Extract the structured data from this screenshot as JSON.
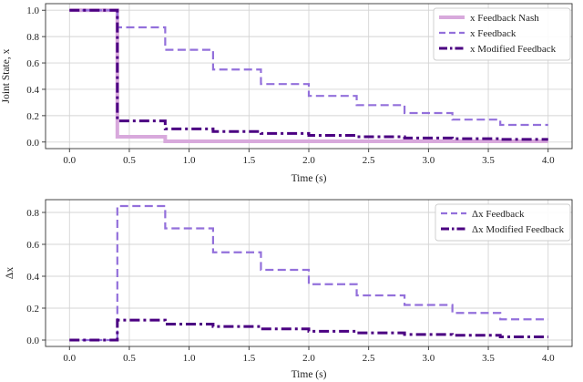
{
  "chart_data": [
    {
      "type": "line",
      "xlabel": "Time (s)",
      "ylabel": "Joint State, x",
      "xlim": [
        -0.2,
        4.2
      ],
      "ylim": [
        -0.05,
        1.05
      ],
      "xticks": [
        "0.0",
        "0.5",
        "1.0",
        "1.5",
        "2.0",
        "2.5",
        "3.0",
        "3.5",
        "4.0"
      ],
      "yticks": [
        "0.0",
        "0.2",
        "0.4",
        "0.6",
        "0.8",
        "1.0"
      ],
      "xtick_values": [
        0,
        0.5,
        1,
        1.5,
        2,
        2.5,
        3,
        3.5,
        4
      ],
      "ytick_values": [
        0,
        0.2,
        0.4,
        0.6,
        0.8,
        1.0
      ],
      "grid": true,
      "legend_position": "top-right",
      "series": [
        {
          "name": "x Feedback Nash",
          "color": "#d8a9dc",
          "style": "solid",
          "step": true,
          "x": [
            0,
            0.4,
            0.8,
            4.0
          ],
          "y": [
            1.0,
            0.04,
            0.005,
            0.005
          ]
        },
        {
          "name": "x Feedback",
          "color": "#9370db",
          "style": "dashed",
          "step": true,
          "x": [
            0,
            0.4,
            0.8,
            1.2,
            1.6,
            2.0,
            2.4,
            2.8,
            3.2,
            3.6,
            4.0
          ],
          "y": [
            1.0,
            0.87,
            0.7,
            0.55,
            0.44,
            0.35,
            0.28,
            0.22,
            0.17,
            0.13,
            0.13
          ]
        },
        {
          "name": "x Modified Feedback",
          "color": "#4b0082",
          "style": "dashdot",
          "step": true,
          "x": [
            0,
            0.4,
            0.8,
            1.2,
            1.6,
            2.0,
            2.4,
            2.8,
            3.2,
            3.6,
            4.0
          ],
          "y": [
            1.0,
            0.16,
            0.1,
            0.08,
            0.065,
            0.05,
            0.04,
            0.03,
            0.025,
            0.02,
            0.02
          ]
        }
      ]
    },
    {
      "type": "line",
      "xlabel": "Time (s)",
      "ylabel": "Δx",
      "xlim": [
        -0.2,
        4.2
      ],
      "ylim": [
        -0.04,
        0.88
      ],
      "xticks": [
        "0.0",
        "0.5",
        "1.0",
        "1.5",
        "2.0",
        "2.5",
        "3.0",
        "3.5",
        "4.0"
      ],
      "yticks": [
        "0.0",
        "0.2",
        "0.4",
        "0.6",
        "0.8"
      ],
      "xtick_values": [
        0,
        0.5,
        1,
        1.5,
        2,
        2.5,
        3,
        3.5,
        4
      ],
      "ytick_values": [
        0,
        0.2,
        0.4,
        0.6,
        0.8
      ],
      "grid": true,
      "legend_position": "top-right",
      "series": [
        {
          "name": "Δx Feedback",
          "color": "#9370db",
          "style": "dashed",
          "step": true,
          "x": [
            0,
            0.4,
            0.8,
            1.2,
            1.6,
            2.0,
            2.4,
            2.8,
            3.2,
            3.6,
            4.0
          ],
          "y": [
            0.0,
            0.84,
            0.7,
            0.55,
            0.44,
            0.35,
            0.28,
            0.22,
            0.17,
            0.13,
            0.13
          ]
        },
        {
          "name": "Δx Modified Feedback",
          "color": "#4b0082",
          "style": "dashdot",
          "step": true,
          "x": [
            0,
            0.4,
            0.8,
            1.2,
            1.6,
            2.0,
            2.4,
            2.8,
            3.2,
            3.6,
            4.0
          ],
          "y": [
            0.0,
            0.125,
            0.1,
            0.085,
            0.07,
            0.055,
            0.045,
            0.035,
            0.03,
            0.02,
            0.02
          ]
        }
      ]
    }
  ]
}
